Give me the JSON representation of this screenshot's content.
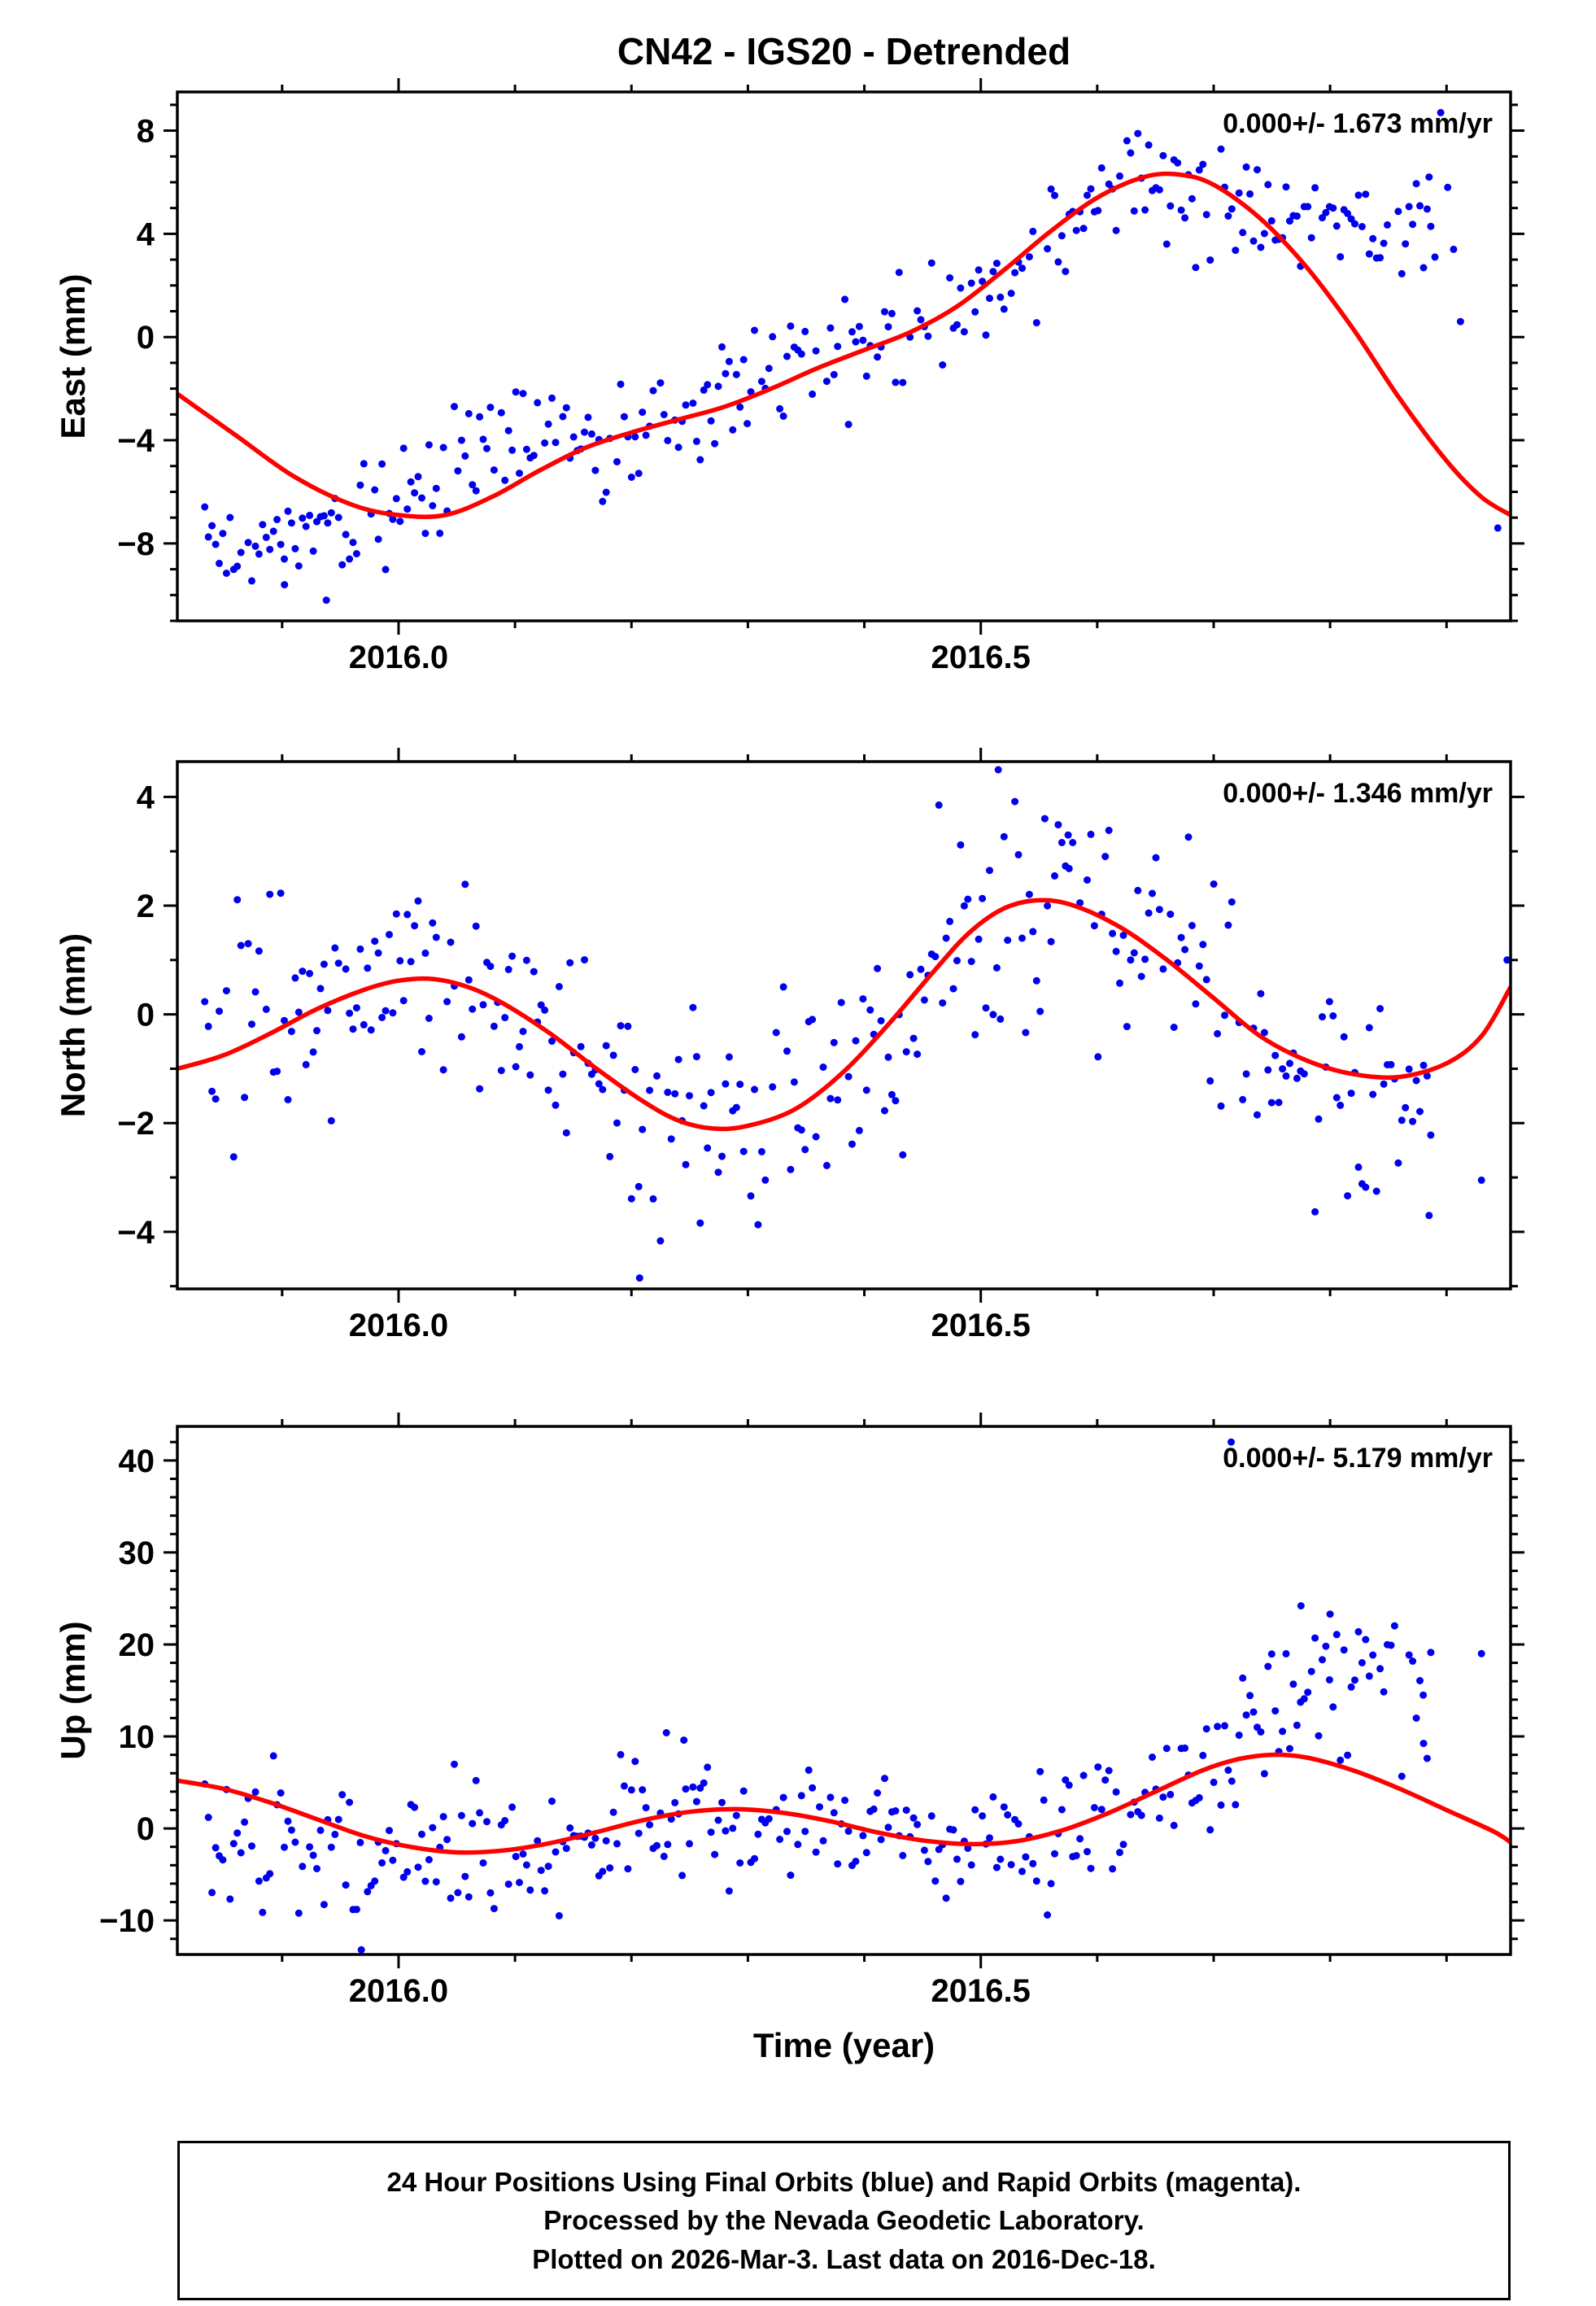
{
  "figure_title": "CN42 - IGS20 - Detrended",
  "colors": {
    "points": "#0000ee",
    "fit": "#ff0000",
    "frame": "#000000"
  },
  "x_axis": {
    "label": "Time (year)",
    "lim": [
      2015.81,
      2016.955
    ],
    "ticks": [
      {
        "v": 2016.0,
        "label": "2016.0"
      },
      {
        "v": 2016.5,
        "label": "2016.5"
      }
    ],
    "minor_step": 0.1
  },
  "footer": {
    "lines": [
      "24 Hour Positions Using Final Orbits (blue) and Rapid Orbits (magenta).",
      "Processed by the Nevada Geodetic Laboratory.",
      "Plotted on 2026-Mar-3. Last data on 2016-Dec-18."
    ]
  },
  "chart_data": [
    {
      "type": "scatter",
      "name": "east",
      "ylabel": "East (mm)",
      "annotation": "0.000+/- 1.673 mm/yr",
      "ylim": [
        -11,
        9.5
      ],
      "yticks": [
        8,
        4,
        0,
        -4,
        -8
      ],
      "yminor": 1,
      "fit_curve": [
        [
          2015.81,
          -2.2
        ],
        [
          2015.86,
          -3.8
        ],
        [
          2015.91,
          -5.4
        ],
        [
          2015.96,
          -6.5
        ],
        [
          2016.0,
          -6.9
        ],
        [
          2016.04,
          -6.9
        ],
        [
          2016.08,
          -6.2
        ],
        [
          2016.12,
          -5.2
        ],
        [
          2016.16,
          -4.3
        ],
        [
          2016.2,
          -3.7
        ],
        [
          2016.24,
          -3.2
        ],
        [
          2016.28,
          -2.7
        ],
        [
          2016.32,
          -2.0
        ],
        [
          2016.36,
          -1.2
        ],
        [
          2016.4,
          -0.5
        ],
        [
          2016.44,
          0.2
        ],
        [
          2016.48,
          1.2
        ],
        [
          2016.52,
          2.6
        ],
        [
          2016.56,
          4.1
        ],
        [
          2016.6,
          5.4
        ],
        [
          2016.64,
          6.2
        ],
        [
          2016.67,
          6.3
        ],
        [
          2016.7,
          5.9
        ],
        [
          2016.74,
          4.6
        ],
        [
          2016.78,
          2.7
        ],
        [
          2016.82,
          0.3
        ],
        [
          2016.86,
          -2.4
        ],
        [
          2016.9,
          -4.8
        ],
        [
          2016.93,
          -6.2
        ],
        [
          2016.955,
          -6.9
        ]
      ],
      "data_trend": [
        [
          2015.81,
          -7.9
        ],
        [
          2015.86,
          -7.9
        ],
        [
          2015.9,
          -7.7
        ],
        [
          2015.94,
          -7.2
        ],
        [
          2015.98,
          -6.7
        ],
        [
          2016.02,
          -6.3
        ],
        [
          2016.06,
          -4.6
        ],
        [
          2016.1,
          -3.6
        ],
        [
          2016.14,
          -4.2
        ],
        [
          2016.18,
          -4.0
        ],
        [
          2016.22,
          -3.5
        ],
        [
          2016.26,
          -3.0
        ],
        [
          2016.3,
          -2.4
        ],
        [
          2016.34,
          -1.5
        ],
        [
          2016.38,
          -0.3
        ],
        [
          2016.42,
          0.4
        ],
        [
          2016.46,
          1.0
        ],
        [
          2016.5,
          2.1
        ],
        [
          2016.54,
          3.4
        ],
        [
          2016.58,
          4.6
        ],
        [
          2016.62,
          5.2
        ],
        [
          2016.66,
          5.4
        ],
        [
          2016.7,
          5.1
        ],
        [
          2016.74,
          4.7
        ],
        [
          2016.78,
          4.4
        ],
        [
          2016.82,
          4.5
        ],
        [
          2016.86,
          4.4
        ],
        [
          2016.89,
          4.5
        ]
      ],
      "scatter": {
        "n": 340,
        "x0": 2015.832,
        "x1": 2016.888,
        "sigma": 1.15,
        "seed": 71,
        "drop": 0.07
      },
      "sigma_regions": [],
      "extra_points": [
        [
          2016.885,
          6.2
        ],
        [
          2016.895,
          8.7
        ],
        [
          2016.901,
          5.8
        ],
        [
          2016.906,
          3.4
        ],
        [
          2016.912,
          0.6
        ],
        [
          2016.944,
          -7.4
        ],
        [
          2015.902,
          -9.6
        ],
        [
          2015.938,
          -10.2
        ],
        [
          2016.89,
          3.1
        ]
      ]
    },
    {
      "type": "scatter",
      "name": "north",
      "ylabel": "North (mm)",
      "annotation": "0.000+/- 1.346 mm/yr",
      "ylim": [
        -5.05,
        4.65
      ],
      "yticks": [
        4,
        2,
        0,
        -2,
        -4
      ],
      "yminor": 1,
      "fit_curve": [
        [
          2015.81,
          -1.0
        ],
        [
          2015.85,
          -0.75
        ],
        [
          2015.89,
          -0.35
        ],
        [
          2015.93,
          0.1
        ],
        [
          2015.97,
          0.45
        ],
        [
          2016.0,
          0.62
        ],
        [
          2016.03,
          0.65
        ],
        [
          2016.06,
          0.5
        ],
        [
          2016.09,
          0.2
        ],
        [
          2016.13,
          -0.35
        ],
        [
          2016.17,
          -1.0
        ],
        [
          2016.21,
          -1.6
        ],
        [
          2016.24,
          -1.95
        ],
        [
          2016.27,
          -2.1
        ],
        [
          2016.3,
          -2.05
        ],
        [
          2016.34,
          -1.75
        ],
        [
          2016.38,
          -1.1
        ],
        [
          2016.42,
          -0.2
        ],
        [
          2016.46,
          0.8
        ],
        [
          2016.49,
          1.5
        ],
        [
          2016.52,
          1.95
        ],
        [
          2016.55,
          2.1
        ],
        [
          2016.58,
          2.0
        ],
        [
          2016.62,
          1.6
        ],
        [
          2016.66,
          1.0
        ],
        [
          2016.7,
          0.3
        ],
        [
          2016.74,
          -0.4
        ],
        [
          2016.78,
          -0.85
        ],
        [
          2016.82,
          -1.1
        ],
        [
          2016.86,
          -1.15
        ],
        [
          2016.9,
          -0.9
        ],
        [
          2016.93,
          -0.4
        ],
        [
          2016.955,
          0.5
        ]
      ],
      "data_trend": [
        [
          2015.81,
          -0.2
        ],
        [
          2015.85,
          0.0
        ],
        [
          2015.89,
          0.1
        ],
        [
          2015.93,
          0.2
        ],
        [
          2015.97,
          0.4
        ],
        [
          2016.0,
          0.55
        ],
        [
          2016.03,
          0.6
        ],
        [
          2016.06,
          0.45
        ],
        [
          2016.09,
          0.2
        ],
        [
          2016.13,
          -0.3
        ],
        [
          2016.17,
          -0.95
        ],
        [
          2016.21,
          -1.6
        ],
        [
          2016.24,
          -1.95
        ],
        [
          2016.27,
          -2.15
        ],
        [
          2016.3,
          -2.1
        ],
        [
          2016.34,
          -1.8
        ],
        [
          2016.38,
          -1.1
        ],
        [
          2016.42,
          -0.2
        ],
        [
          2016.46,
          0.8
        ],
        [
          2016.49,
          1.5
        ],
        [
          2016.52,
          1.9
        ],
        [
          2016.55,
          2.1
        ],
        [
          2016.58,
          2.0
        ],
        [
          2016.62,
          1.6
        ],
        [
          2016.66,
          1.0
        ],
        [
          2016.7,
          0.3
        ],
        [
          2016.74,
          -1.0
        ],
        [
          2016.78,
          -1.7
        ],
        [
          2016.82,
          -2.1
        ],
        [
          2016.86,
          -1.9
        ],
        [
          2016.89,
          -1.6
        ]
      ],
      "scatter": {
        "n": 340,
        "x0": 2015.832,
        "x1": 2016.888,
        "sigma": 1.05,
        "seed": 137,
        "drop": 0.07
      },
      "sigma_regions": [],
      "extra_points": [
        [
          2016.207,
          -4.85
        ],
        [
          2016.515,
          4.5
        ],
        [
          2016.93,
          -3.05
        ],
        [
          2016.952,
          1.0
        ],
        [
          2016.555,
          3.6
        ],
        [
          2016.575,
          3.3
        ],
        [
          2016.885,
          -3.7
        ]
      ]
    },
    {
      "type": "scatter",
      "name": "up",
      "ylabel": "Up (mm)",
      "annotation": "0.000+/- 5.179 mm/yr",
      "ylim": [
        -13.7,
        43.7
      ],
      "yticks": [
        40,
        30,
        20,
        10,
        0,
        -10
      ],
      "yminor": 2,
      "fit_curve": [
        [
          2015.81,
          5.2
        ],
        [
          2015.85,
          4.3
        ],
        [
          2015.89,
          2.8
        ],
        [
          2015.93,
          1.0
        ],
        [
          2015.97,
          -0.8
        ],
        [
          2016.01,
          -2.0
        ],
        [
          2016.05,
          -2.6
        ],
        [
          2016.09,
          -2.4
        ],
        [
          2016.13,
          -1.6
        ],
        [
          2016.17,
          -0.4
        ],
        [
          2016.21,
          0.9
        ],
        [
          2016.25,
          1.8
        ],
        [
          2016.29,
          2.1
        ],
        [
          2016.33,
          1.7
        ],
        [
          2016.37,
          0.8
        ],
        [
          2016.41,
          -0.4
        ],
        [
          2016.45,
          -1.3
        ],
        [
          2016.49,
          -1.7
        ],
        [
          2016.53,
          -1.4
        ],
        [
          2016.57,
          -0.2
        ],
        [
          2016.61,
          1.7
        ],
        [
          2016.65,
          4.0
        ],
        [
          2016.69,
          6.3
        ],
        [
          2016.72,
          7.5
        ],
        [
          2016.75,
          8.0
        ],
        [
          2016.78,
          7.7
        ],
        [
          2016.82,
          6.3
        ],
        [
          2016.86,
          4.3
        ],
        [
          2016.9,
          2.0
        ],
        [
          2016.94,
          -0.3
        ],
        [
          2016.955,
          -1.5
        ]
      ],
      "data_trend": [
        [
          2015.81,
          -0.5
        ],
        [
          2015.86,
          -2.0
        ],
        [
          2015.91,
          -2.5
        ],
        [
          2015.96,
          -2.5
        ],
        [
          2016.01,
          -2.5
        ],
        [
          2016.06,
          -2.6
        ],
        [
          2016.11,
          -2.0
        ],
        [
          2016.16,
          -0.8
        ],
        [
          2016.21,
          0.6
        ],
        [
          2016.26,
          1.6
        ],
        [
          2016.31,
          1.4
        ],
        [
          2016.36,
          0.5
        ],
        [
          2016.41,
          -0.5
        ],
        [
          2016.46,
          -1.4
        ],
        [
          2016.51,
          -1.6
        ],
        [
          2016.56,
          -0.6
        ],
        [
          2016.61,
          1.4
        ],
        [
          2016.66,
          4.0
        ],
        [
          2016.7,
          7.0
        ],
        [
          2016.74,
          10.5
        ],
        [
          2016.78,
          13.5
        ],
        [
          2016.82,
          15.5
        ],
        [
          2016.86,
          15.0
        ],
        [
          2016.89,
          14.0
        ]
      ],
      "scatter": {
        "n": 340,
        "x0": 2015.832,
        "x1": 2016.888,
        "sigma": 3.6,
        "seed": 29,
        "drop": 0.07
      },
      "sigma_regions": [
        {
          "x0": 2016.7,
          "x1": 2016.89,
          "sigma": 4.6
        }
      ],
      "extra_points": [
        [
          2016.715,
          42.0
        ],
        [
          2016.88,
          14.5
        ],
        [
          2016.93,
          19.0
        ],
        [
          2016.958,
          -6.3
        ],
        [
          2015.968,
          -13.2
        ],
        [
          2016.23,
          10.4
        ],
        [
          2016.245,
          9.6
        ],
        [
          2016.775,
          24.2
        ],
        [
          2016.8,
          23.3
        ]
      ]
    }
  ]
}
